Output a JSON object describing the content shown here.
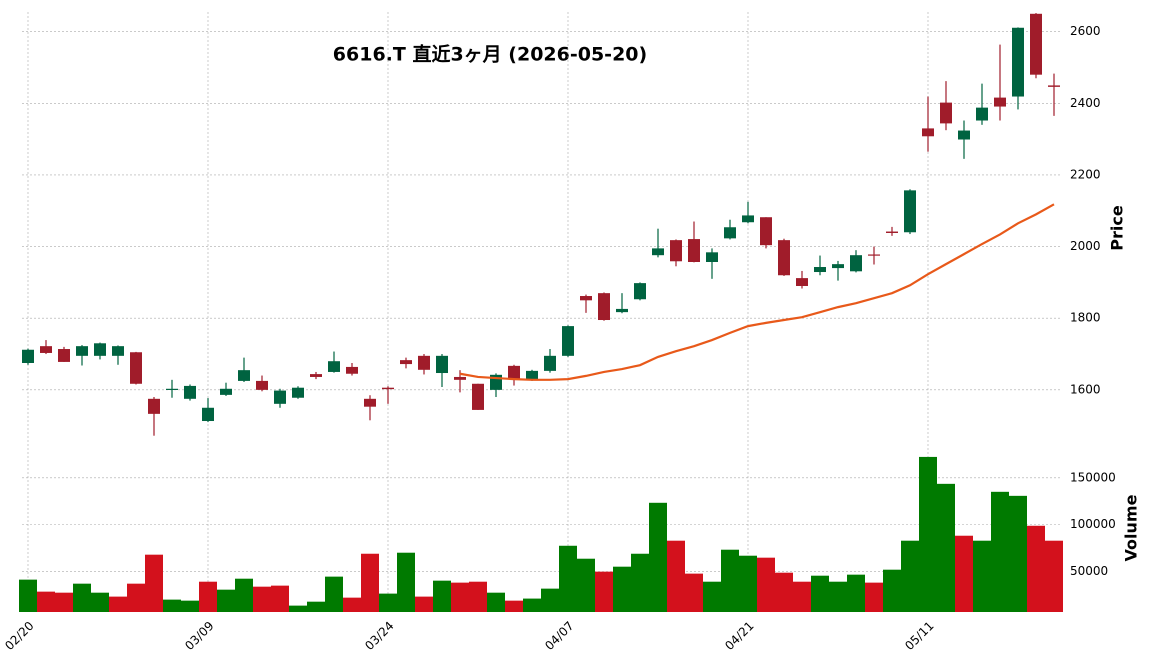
{
  "chart_data": {
    "type": "candlestick",
    "title": "6616.T  直近3ヶ月  (2026-05-20)",
    "categories": [
      "02/20",
      null,
      null,
      null,
      null,
      null,
      null,
      null,
      null,
      null,
      "03/09",
      null,
      null,
      null,
      null,
      null,
      null,
      null,
      null,
      null,
      "03/24",
      null,
      null,
      null,
      null,
      null,
      null,
      null,
      null,
      null,
      "04/07",
      null,
      null,
      null,
      null,
      null,
      null,
      null,
      null,
      null,
      "04/21",
      null,
      null,
      null,
      null,
      null,
      null,
      null,
      null,
      null,
      "05/11",
      null,
      null,
      null,
      null,
      null,
      null,
      null
    ],
    "open": [
      1675,
      1722,
      1714,
      1695,
      1695,
      1695,
      1705,
      1575,
      1600,
      1575,
      1513,
      1586,
      1625,
      1625,
      1561,
      1578,
      1644,
      1650,
      1664,
      1575,
      1606,
      1683,
      1695,
      1647,
      1636,
      1617,
      1600,
      1667,
      1630,
      1653,
      1695,
      1862,
      1870,
      1817,
      1853,
      1976,
      2018,
      2021,
      1957,
      2023,
      2068,
      2082,
      2018,
      1912,
      1929,
      1940,
      1931,
      1978,
      2042,
      2040,
      2330,
      2402,
      2299,
      2352,
      2416,
      2419,
      2650,
      2450
    ],
    "high": [
      1715,
      1739,
      1720,
      1725,
      1732,
      1724,
      1706,
      1580,
      1628,
      1615,
      1577,
      1620,
      1690,
      1640,
      1603,
      1610,
      1650,
      1707,
      1675,
      1585,
      1610,
      1690,
      1700,
      1700,
      1655,
      1617,
      1646,
      1670,
      1656,
      1714,
      1780,
      1866,
      1872,
      1870,
      1900,
      2050,
      2020,
      2070,
      1995,
      2075,
      2125,
      2082,
      2022,
      1932,
      1975,
      1960,
      1990,
      2000,
      2055,
      2160,
      2419,
      2462,
      2352,
      2455,
      2564,
      2612,
      2652,
      2483
    ],
    "low": [
      1670,
      1700,
      1678,
      1668,
      1685,
      1670,
      1615,
      1472,
      1578,
      1570,
      1510,
      1583,
      1622,
      1596,
      1550,
      1575,
      1630,
      1648,
      1640,
      1515,
      1561,
      1660,
      1643,
      1608,
      1593,
      1544,
      1580,
      1612,
      1625,
      1648,
      1692,
      1815,
      1793,
      1814,
      1850,
      1970,
      1945,
      1956,
      1910,
      2020,
      2065,
      1995,
      1918,
      1883,
      1920,
      1905,
      1928,
      1950,
      2030,
      2035,
      2265,
      2325,
      2245,
      2340,
      2352,
      2383,
      2470,
      2365
    ],
    "close": [
      1712,
      1703,
      1678,
      1722,
      1730,
      1722,
      1617,
      1533,
      1603,
      1611,
      1550,
      1603,
      1655,
      1600,
      1598,
      1606,
      1636,
      1680,
      1645,
      1553,
      1602,
      1672,
      1656,
      1695,
      1628,
      1544,
      1642,
      1630,
      1653,
      1695,
      1778,
      1850,
      1795,
      1826,
      1898,
      1995,
      1959,
      1957,
      1984,
      2054,
      2087,
      2004,
      1920,
      1890,
      1943,
      1951,
      1976,
      1975,
      2038,
      2157,
      2308,
      2344,
      2324,
      2388,
      2391,
      2611,
      2480,
      2446
    ],
    "ma": [
      null,
      null,
      null,
      null,
      null,
      null,
      null,
      null,
      null,
      null,
      null,
      null,
      null,
      null,
      null,
      null,
      null,
      null,
      null,
      null,
      null,
      null,
      null,
      null,
      1645,
      1636,
      1633,
      1630,
      1628,
      1628,
      1630,
      1639,
      1650,
      1658,
      1669,
      1692,
      1708,
      1722,
      1739,
      1759,
      1778,
      1787,
      1795,
      1803,
      1817,
      1831,
      1842,
      1856,
      1870,
      1892,
      1923,
      1951,
      1979,
      2007,
      2034,
      2065,
      2090,
      2118
    ],
    "volume": [
      41500,
      28700,
      27600,
      37200,
      27600,
      23400,
      37200,
      68100,
      20200,
      19100,
      39300,
      30800,
      42500,
      34000,
      35100,
      13800,
      18000,
      44700,
      22300,
      69100,
      26600,
      70200,
      23400,
      40400,
      38300,
      39300,
      27600,
      19100,
      21300,
      31900,
      77600,
      63800,
      50000,
      55300,
      69100,
      123400,
      83000,
      47900,
      39300,
      73400,
      67000,
      64900,
      48900,
      39300,
      45700,
      39300,
      46800,
      38300,
      52100,
      83000,
      172300,
      143600,
      88300,
      83000,
      135100,
      130800,
      98900,
      83000
    ],
    "ylim": [
      1460,
      2655
    ],
    "yticks": [
      1600,
      1800,
      2000,
      2200,
      2400,
      2600
    ],
    "volume_ylim": [
      7000,
      185000
    ],
    "volume_yticks": [
      50000,
      100000,
      150000
    ],
    "ylabel": "Price",
    "volume_label": "Volume",
    "up_color": "#006340",
    "down_color": "#a01c2a",
    "volume_up_color": "#007a00",
    "volume_down_color": "#d3111c",
    "ma_color": "#e8591a",
    "grid": true
  }
}
